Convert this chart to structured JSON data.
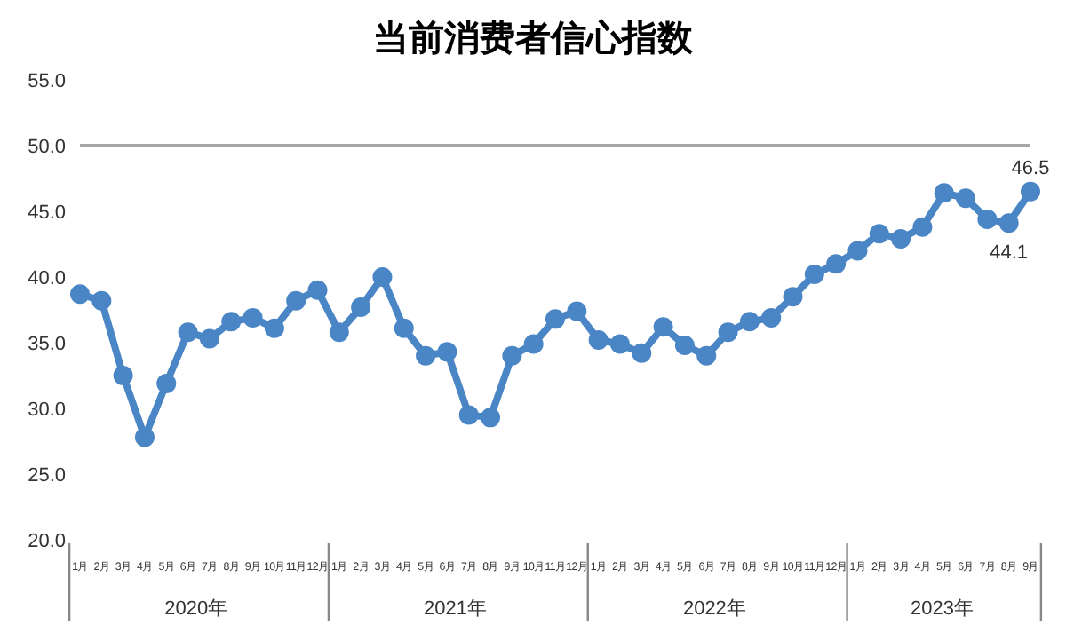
{
  "chart_data": {
    "type": "line",
    "title": "当前消费者信心指数",
    "categories": [
      "1月",
      "2月",
      "3月",
      "4月",
      "5月",
      "6月",
      "7月",
      "8月",
      "9月",
      "10月",
      "11月",
      "12月",
      "1月",
      "2月",
      "3月",
      "4月",
      "5月",
      "6月",
      "7月",
      "8月",
      "9月",
      "10月",
      "11月",
      "12月",
      "1月",
      "2月",
      "3月",
      "4月",
      "5月",
      "6月",
      "7月",
      "8月",
      "9月",
      "10月",
      "11月",
      "12月",
      "1月",
      "2月",
      "3月",
      "4月",
      "5月",
      "6月",
      "7月",
      "8月",
      "9月"
    ],
    "series": [
      {
        "color": "#4a85c5",
        "values": [
          38.7,
          38.2,
          32.5,
          27.8,
          31.9,
          35.8,
          35.3,
          36.6,
          36.9,
          36.1,
          38.2,
          39.0,
          35.8,
          37.7,
          40.0,
          36.1,
          34.0,
          34.3,
          29.5,
          29.3,
          34.0,
          34.9,
          36.8,
          37.4,
          35.2,
          34.9,
          34.2,
          36.2,
          34.8,
          34.0,
          35.8,
          36.6,
          36.9,
          38.5,
          40.2,
          41.0,
          42.0,
          43.3,
          42.9,
          43.8,
          46.4,
          46.0,
          44.4,
          44.1,
          46.5
        ],
        "value_labels": [
          null,
          null,
          null,
          null,
          null,
          null,
          null,
          null,
          null,
          null,
          null,
          null,
          null,
          null,
          null,
          null,
          null,
          null,
          null,
          null,
          null,
          null,
          null,
          null,
          null,
          null,
          null,
          null,
          null,
          null,
          null,
          null,
          null,
          null,
          null,
          null,
          null,
          null,
          null,
          null,
          null,
          null,
          null,
          "44.1",
          "46.5"
        ]
      }
    ],
    "annotations": [
      "2020年",
      "2021年",
      "2022年",
      "2023年"
    ],
    "ylim": [
      20,
      55
    ],
    "yticks": [
      {
        "value": 20,
        "label": "20.0"
      },
      {
        "value": 25,
        "label": "25.0"
      },
      {
        "value": 30,
        "label": "30.0"
      },
      {
        "value": 35,
        "label": "35.0"
      },
      {
        "value": 40,
        "label": "40.0"
      },
      {
        "value": 45,
        "label": "45.0"
      },
      {
        "value": 50,
        "label": "50.0"
      },
      {
        "value": 55,
        "label": "55.0"
      }
    ],
    "ref_lines": [
      {
        "axis": "y",
        "value": 50,
        "color": "#a6a6a6"
      }
    ],
    "grid": false,
    "legend": false,
    "marker": "circle",
    "line_style": "solid"
  }
}
